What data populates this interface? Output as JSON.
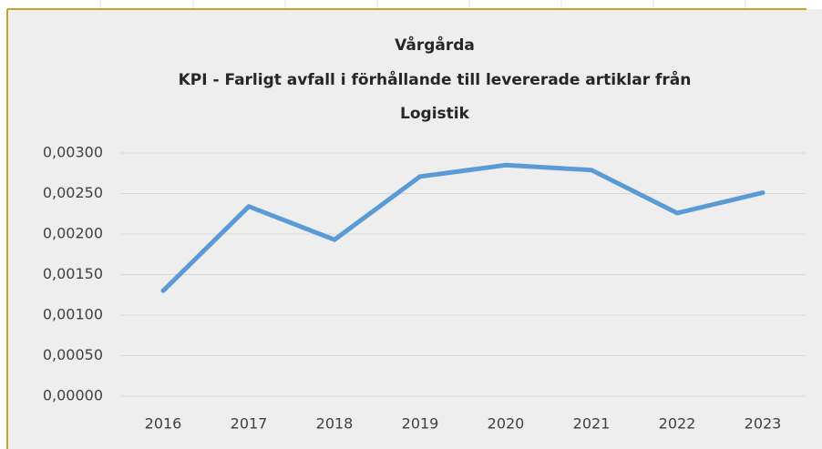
{
  "chart_data": {
    "type": "line",
    "title": [
      "Vårgårda",
      "KPI - Farligt avfall i förhållande till levererade artiklar från",
      "Logistik"
    ],
    "categories": [
      "2016",
      "2017",
      "2018",
      "2019",
      "2020",
      "2021",
      "2022",
      "2023"
    ],
    "values": [
      0.0013,
      0.00234,
      0.00193,
      0.00271,
      0.00285,
      0.00279,
      0.00226,
      0.00251
    ],
    "color": "#5b9bd5",
    "ylim": [
      0,
      0.003
    ],
    "yticks": [
      {
        "value": 0,
        "label": "0,00000"
      },
      {
        "value": 0.0005,
        "label": "0,00050"
      },
      {
        "value": 0.001,
        "label": "0,00100"
      },
      {
        "value": 0.0015,
        "label": "0,00150"
      },
      {
        "value": 0.002,
        "label": "0,00200"
      },
      {
        "value": 0.0025,
        "label": "0,00250"
      },
      {
        "value": 0.003,
        "label": "0,00300"
      }
    ],
    "grid": true
  }
}
